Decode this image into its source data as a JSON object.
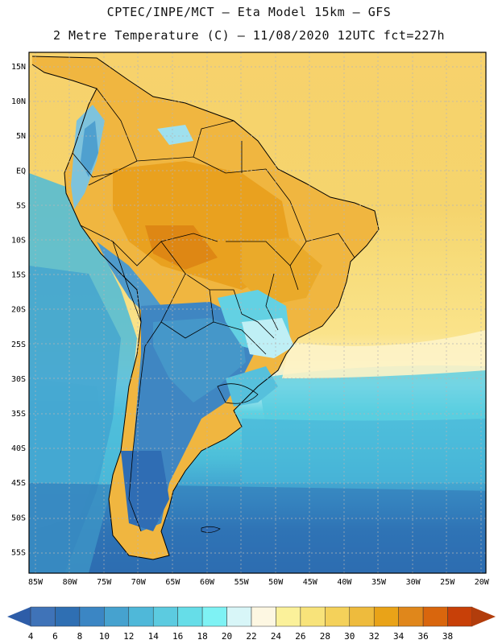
{
  "header": {
    "line1": "CPTEC/INPE/MCT –  Eta Model 15km – GFS",
    "line2": "2 Metre Temperature (C) – 11/08/2020 12UTC fct=227h"
  },
  "map": {
    "region": "South America",
    "lat_labels": [
      "15N",
      "10N",
      "5N",
      "EQ",
      "5S",
      "10S",
      "15S",
      "20S",
      "25S",
      "30S",
      "35S",
      "40S",
      "45S",
      "50S",
      "55S"
    ],
    "lon_labels": [
      "85W",
      "80W",
      "75W",
      "70W",
      "65W",
      "60W",
      "55W",
      "50W",
      "45W",
      "40W",
      "35W",
      "30W",
      "25W",
      "20W"
    ]
  },
  "colorbar": {
    "labels": [
      "4",
      "6",
      "8",
      "10",
      "12",
      "14",
      "16",
      "18",
      "20",
      "22",
      "24",
      "26",
      "28",
      "30",
      "32",
      "34",
      "36",
      "38"
    ],
    "colors": [
      "#3f73b8",
      "#2f6fb3",
      "#3b86c4",
      "#46a2cf",
      "#4fb8d9",
      "#5ccbe0",
      "#66dde8",
      "#7ef2f4",
      "#d8f6f8",
      "#fdf7e2",
      "#fbf19a",
      "#f8e37a",
      "#f4d15a",
      "#eebb3d",
      "#e9a318",
      "#e0871b",
      "#d9660d",
      "#c84008"
    ],
    "low_color": "#2e5da8",
    "high_color": "#b23d0c"
  }
}
